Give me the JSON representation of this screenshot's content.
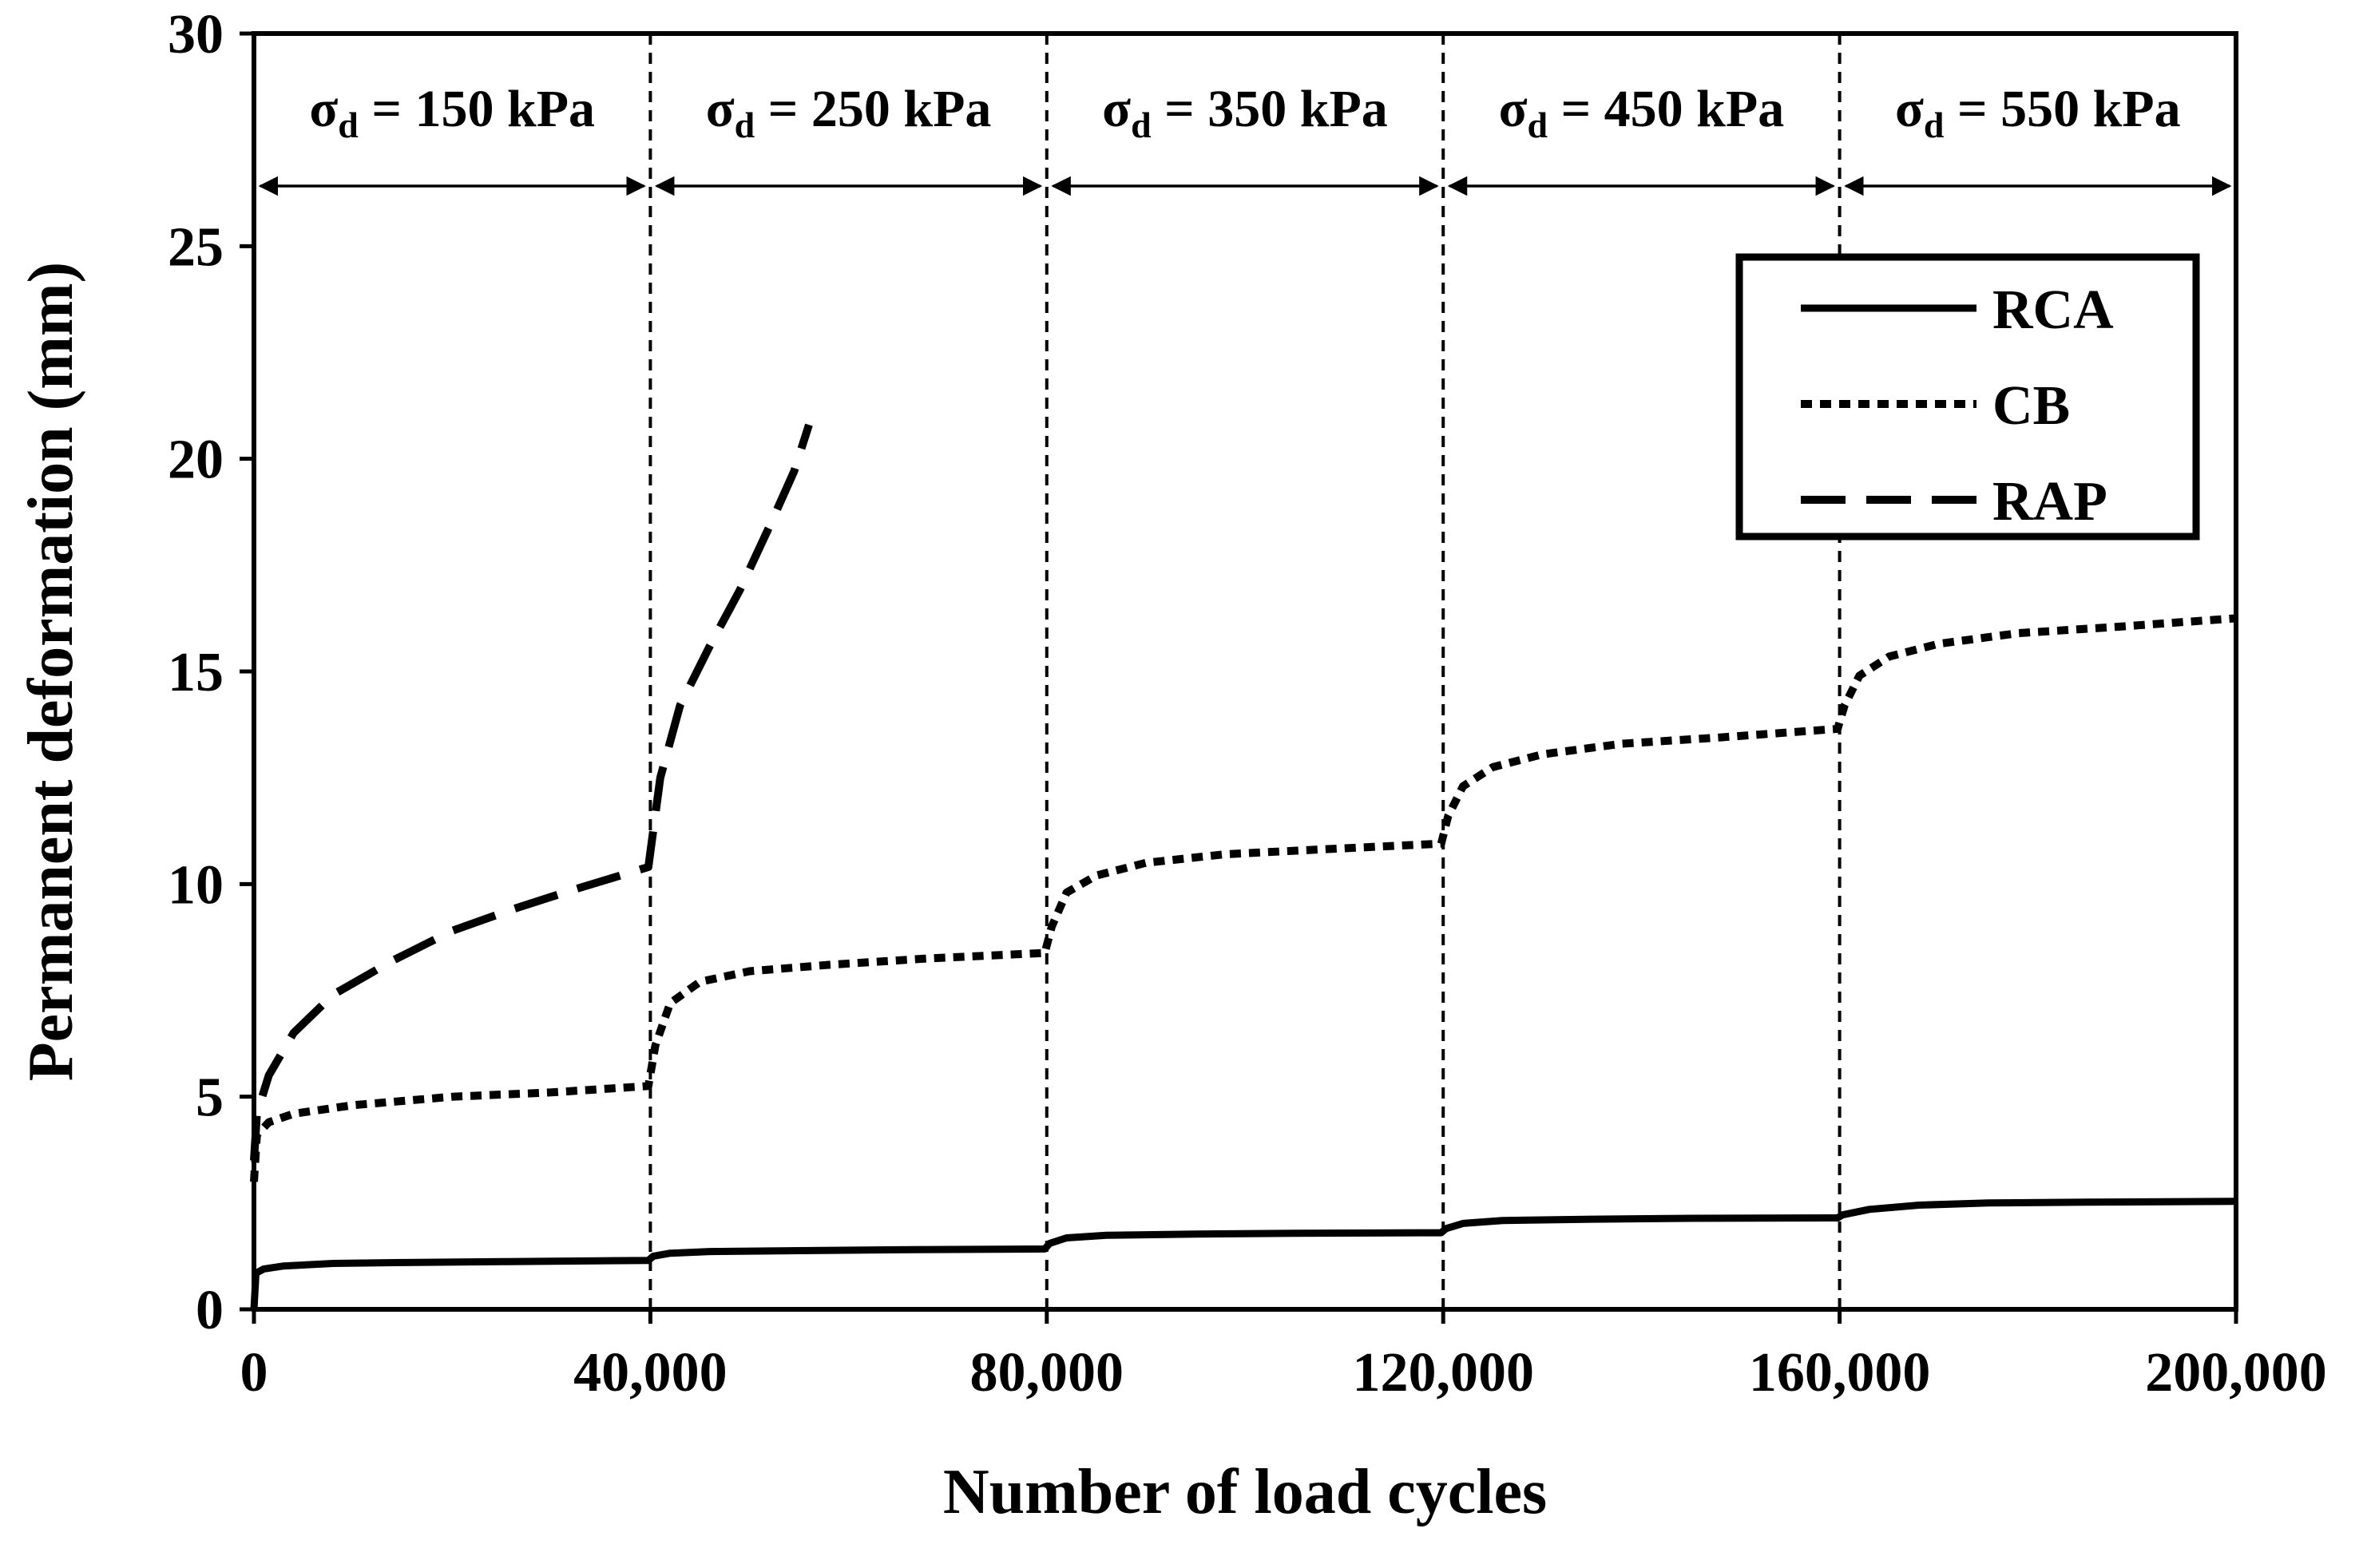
{
  "chart_data": {
    "type": "line",
    "title": "",
    "xlabel": "Number of load cycles",
    "ylabel": "Permanent deformation (mm)",
    "xlim": [
      0,
      200000
    ],
    "ylim": [
      0,
      30
    ],
    "x_ticks": [
      0,
      40000,
      80000,
      120000,
      160000,
      200000
    ],
    "x_tick_labels": [
      "0",
      "40,000",
      "80,000",
      "120,000",
      "160,000",
      "200,000"
    ],
    "y_ticks": [
      0,
      5,
      10,
      15,
      20,
      25,
      30
    ],
    "y_tick_labels": [
      "0",
      "5",
      "10",
      "15",
      "20",
      "25",
      "30"
    ],
    "stage_boundaries": [
      40000,
      80000,
      120000,
      160000
    ],
    "stages": [
      {
        "symbol": "σ",
        "subscript": "d",
        "text": " = 150 kPa",
        "from": 0,
        "to": 40000
      },
      {
        "symbol": "σ",
        "subscript": "d",
        "text": " = 250 kPa",
        "from": 40000,
        "to": 80000
      },
      {
        "symbol": "σ",
        "subscript": "d",
        "text": " = 350 kPa",
        "from": 80000,
        "to": 120000
      },
      {
        "symbol": "σ",
        "subscript": "d",
        "text": " = 450 kPa",
        "from": 120000,
        "to": 160000
      },
      {
        "symbol": "σ",
        "subscript": "d",
        "text": " = 550 kPa",
        "from": 160000,
        "to": 200000
      }
    ],
    "legend_position": "top-right",
    "series": [
      {
        "name": "RCA",
        "style": "solid",
        "x": [
          0,
          200,
          1000,
          3000,
          8000,
          15000,
          25000,
          39800,
          40300,
          42000,
          46000,
          55000,
          65000,
          79800,
          80300,
          82000,
          86000,
          95000,
          105000,
          119800,
          120300,
          122000,
          126000,
          135000,
          145000,
          159800,
          160300,
          163000,
          168000,
          175000,
          185000,
          200000
        ],
        "y": [
          0,
          0.85,
          0.95,
          1.02,
          1.08,
          1.1,
          1.12,
          1.15,
          1.25,
          1.32,
          1.36,
          1.38,
          1.4,
          1.42,
          1.55,
          1.68,
          1.74,
          1.77,
          1.79,
          1.8,
          1.9,
          2.02,
          2.09,
          2.12,
          2.14,
          2.15,
          2.22,
          2.35,
          2.45,
          2.5,
          2.52,
          2.54
        ]
      },
      {
        "name": "CB",
        "style": "dotted",
        "x": [
          0,
          300,
          1500,
          4000,
          10000,
          20000,
          30000,
          39800,
          40500,
          42000,
          45000,
          50000,
          58000,
          68000,
          79800,
          80500,
          82000,
          85000,
          90000,
          98000,
          108000,
          119800,
          120500,
          122000,
          125000,
          130000,
          138000,
          148000,
          159800,
          160500,
          162000,
          165000,
          170000,
          178000,
          188000,
          200000
        ],
        "y": [
          3.0,
          4.1,
          4.4,
          4.6,
          4.8,
          5.0,
          5.1,
          5.25,
          6.2,
          7.2,
          7.7,
          7.95,
          8.1,
          8.25,
          8.38,
          9.0,
          9.8,
          10.2,
          10.5,
          10.7,
          10.82,
          10.95,
          11.6,
          12.3,
          12.75,
          13.05,
          13.3,
          13.45,
          13.65,
          14.2,
          14.9,
          15.35,
          15.65,
          15.9,
          16.05,
          16.25
        ]
      },
      {
        "name": "RAP",
        "style": "dashed",
        "x": [
          0,
          300,
          1500,
          4000,
          8000,
          14000,
          20000,
          26000,
          32000,
          39800,
          41000,
          43000,
          46000,
          49000,
          52000,
          54500,
          56000
        ],
        "y": [
          3.5,
          4.6,
          5.5,
          6.5,
          7.4,
          8.2,
          8.9,
          9.4,
          9.85,
          10.4,
          12.5,
          14.2,
          15.6,
          16.9,
          18.4,
          19.7,
          20.8
        ]
      }
    ]
  }
}
